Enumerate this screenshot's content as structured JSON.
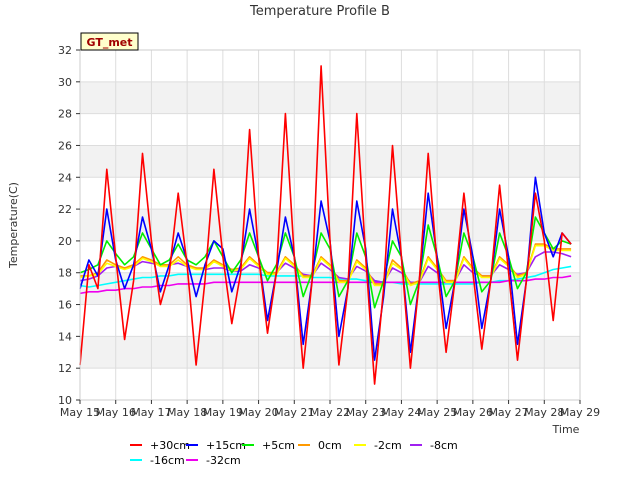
{
  "chart_data": {
    "type": "line",
    "title": "Temperature Profile B",
    "xlabel": "Time",
    "ylabel": "Temperature(C)",
    "annotation": "GT_met",
    "xlim": [
      "May 15",
      "May 29"
    ],
    "ylim": [
      10,
      32
    ],
    "yticks": [
      10,
      12,
      14,
      16,
      18,
      20,
      22,
      24,
      26,
      28,
      30,
      32
    ],
    "xticks": [
      "May 15",
      "May 16",
      "May 17",
      "May 18",
      "May 19",
      "May 20",
      "May 21",
      "May 22",
      "May 23",
      "May 24",
      "May 25",
      "May 26",
      "May 27",
      "May 28",
      "May 29"
    ],
    "grid": true,
    "legend_position": "bottom",
    "x": [
      "May 15 00:00",
      "May 15 06:00",
      "May 15 12:00",
      "May 15 18:00",
      "May 16 00:00",
      "May 16 06:00",
      "May 16 12:00",
      "May 16 18:00",
      "May 17 00:00",
      "May 17 06:00",
      "May 17 12:00",
      "May 17 18:00",
      "May 18 00:00",
      "May 18 06:00",
      "May 18 12:00",
      "May 18 18:00",
      "May 19 00:00",
      "May 19 06:00",
      "May 19 12:00",
      "May 19 18:00",
      "May 20 00:00",
      "May 20 06:00",
      "May 20 12:00",
      "May 20 18:00",
      "May 21 00:00",
      "May 21 06:00",
      "May 21 12:00",
      "May 21 18:00",
      "May 22 00:00",
      "May 22 06:00",
      "May 22 12:00",
      "May 22 18:00",
      "May 23 00:00",
      "May 23 06:00",
      "May 23 12:00",
      "May 23 18:00",
      "May 24 00:00",
      "May 24 06:00",
      "May 24 12:00",
      "May 24 18:00",
      "May 25 00:00",
      "May 25 06:00",
      "May 25 12:00",
      "May 25 18:00",
      "May 26 00:00",
      "May 26 06:00",
      "May 26 12:00",
      "May 26 18:00",
      "May 27 00:00",
      "May 27 06:00",
      "May 27 12:00",
      "May 27 18:00",
      "May 28 00:00",
      "May 28 06:00",
      "May 28 12:00",
      "May 28 18:00"
    ],
    "series": [
      {
        "name": "+30cm",
        "color": "#ff0000",
        "values": [
          12.2,
          18.5,
          17.0,
          24.5,
          19.0,
          13.8,
          17.5,
          25.5,
          20.0,
          16.0,
          18.0,
          23.0,
          18.5,
          12.2,
          17.5,
          24.5,
          19.0,
          14.8,
          18.0,
          27.0,
          19.0,
          14.2,
          18.0,
          28.0,
          19.0,
          12.0,
          17.5,
          31.0,
          20.0,
          12.2,
          17.0,
          28.0,
          19.0,
          11.0,
          17.0,
          26.0,
          19.0,
          12.0,
          17.5,
          25.5,
          18.5,
          13.0,
          17.5,
          23.0,
          18.0,
          13.2,
          17.5,
          23.5,
          18.0,
          12.5,
          17.5,
          23.0,
          20.0,
          15.0,
          20.5,
          19.8
        ]
      },
      {
        "name": "+15cm",
        "color": "#0000ff",
        "values": [
          17.0,
          18.8,
          17.8,
          22.0,
          18.8,
          17.0,
          18.5,
          21.5,
          19.5,
          16.8,
          18.5,
          20.5,
          18.8,
          16.5,
          18.5,
          20.0,
          19.5,
          16.8,
          18.5,
          22.0,
          19.0,
          15.0,
          18.0,
          21.5,
          19.0,
          13.5,
          17.5,
          22.5,
          20.0,
          14.0,
          17.0,
          22.5,
          19.5,
          12.5,
          16.5,
          22.0,
          19.0,
          13.0,
          17.5,
          23.0,
          19.0,
          14.5,
          17.5,
          22.0,
          19.0,
          14.5,
          17.5,
          22.0,
          19.0,
          13.5,
          17.5,
          24.0,
          20.5,
          19.0,
          20.5,
          19.8
        ]
      },
      {
        "name": "+5cm",
        "color": "#00ee00",
        "values": [
          18.0,
          18.2,
          18.5,
          20.0,
          19.2,
          18.5,
          19.0,
          20.5,
          19.5,
          18.5,
          18.8,
          19.8,
          18.8,
          18.5,
          19.0,
          20.0,
          19.0,
          18.0,
          18.8,
          20.5,
          19.0,
          17.5,
          18.5,
          20.5,
          19.0,
          16.5,
          18.0,
          20.5,
          19.5,
          16.5,
          17.5,
          20.5,
          19.0,
          15.8,
          17.5,
          20.0,
          19.0,
          16.0,
          17.5,
          21.0,
          19.0,
          16.5,
          17.5,
          20.5,
          19.0,
          16.8,
          17.5,
          20.5,
          19.0,
          17.0,
          18.0,
          21.5,
          20.5,
          19.5,
          20.0,
          19.8
        ]
      },
      {
        "name": "0cm",
        "color": "#ff9900",
        "values": [
          17.8,
          17.8,
          18.0,
          18.8,
          18.5,
          18.3,
          18.5,
          19.0,
          18.8,
          18.5,
          18.5,
          19.0,
          18.5,
          18.3,
          18.3,
          18.8,
          18.5,
          18.2,
          18.3,
          19.0,
          18.5,
          18.0,
          18.0,
          19.0,
          18.5,
          17.8,
          17.8,
          19.0,
          18.5,
          17.5,
          17.5,
          18.8,
          18.3,
          17.3,
          17.3,
          18.8,
          18.3,
          17.3,
          17.5,
          19.0,
          18.3,
          17.5,
          17.5,
          19.0,
          18.3,
          17.8,
          17.8,
          19.0,
          18.5,
          17.8,
          18.0,
          19.8,
          19.8,
          19.5,
          19.5,
          19.5
        ]
      },
      {
        "name": "-2cm",
        "color": "#ffff00",
        "values": [
          17.7,
          17.8,
          17.9,
          18.6,
          18.4,
          18.2,
          18.4,
          18.9,
          18.7,
          18.4,
          18.4,
          18.8,
          18.4,
          18.2,
          18.2,
          18.7,
          18.4,
          18.1,
          18.2,
          18.9,
          18.4,
          17.9,
          17.9,
          18.9,
          18.4,
          17.7,
          17.7,
          18.9,
          18.4,
          17.4,
          17.4,
          18.7,
          18.2,
          17.2,
          17.2,
          18.6,
          18.2,
          17.2,
          17.4,
          18.9,
          18.2,
          17.4,
          17.4,
          18.9,
          18.2,
          17.7,
          17.7,
          18.9,
          18.4,
          17.7,
          17.9,
          19.7,
          19.7,
          19.4,
          19.4,
          19.4
        ]
      },
      {
        "name": "-8cm",
        "color": "#a020f0",
        "values": [
          17.5,
          17.6,
          17.8,
          18.3,
          18.4,
          18.3,
          18.4,
          18.7,
          18.6,
          18.5,
          18.5,
          18.6,
          18.4,
          18.3,
          18.2,
          18.3,
          18.3,
          18.1,
          18.1,
          18.5,
          18.3,
          18.0,
          18.0,
          18.6,
          18.3,
          17.9,
          17.8,
          18.6,
          18.2,
          17.7,
          17.6,
          18.4,
          18.1,
          17.5,
          17.4,
          18.3,
          18.0,
          17.4,
          17.4,
          18.4,
          18.0,
          17.5,
          17.5,
          18.5,
          18.0,
          17.8,
          17.8,
          18.5,
          18.2,
          17.9,
          18.0,
          19.0,
          19.3,
          19.3,
          19.2,
          19.0
        ]
      },
      {
        "name": "-16cm",
        "color": "#00ffff",
        "values": [
          17.2,
          17.1,
          17.2,
          17.3,
          17.4,
          17.5,
          17.6,
          17.7,
          17.7,
          17.8,
          17.8,
          17.9,
          17.9,
          17.9,
          17.9,
          17.9,
          17.9,
          17.9,
          17.9,
          17.9,
          17.9,
          17.8,
          17.8,
          17.8,
          17.8,
          17.8,
          17.7,
          17.7,
          17.7,
          17.6,
          17.6,
          17.6,
          17.5,
          17.5,
          17.4,
          17.4,
          17.3,
          17.3,
          17.3,
          17.3,
          17.3,
          17.3,
          17.3,
          17.3,
          17.3,
          17.4,
          17.4,
          17.5,
          17.5,
          17.6,
          17.7,
          17.8,
          18.0,
          18.2,
          18.3,
          18.4
        ]
      },
      {
        "name": "-32cm",
        "color": "#ee00ee",
        "values": [
          16.7,
          16.8,
          16.8,
          16.9,
          16.9,
          17.0,
          17.0,
          17.1,
          17.1,
          17.2,
          17.2,
          17.3,
          17.3,
          17.3,
          17.3,
          17.4,
          17.4,
          17.4,
          17.4,
          17.4,
          17.4,
          17.4,
          17.4,
          17.4,
          17.4,
          17.4,
          17.4,
          17.4,
          17.4,
          17.4,
          17.4,
          17.4,
          17.4,
          17.4,
          17.4,
          17.4,
          17.4,
          17.4,
          17.4,
          17.4,
          17.4,
          17.4,
          17.4,
          17.4,
          17.4,
          17.4,
          17.4,
          17.4,
          17.5,
          17.5,
          17.5,
          17.6,
          17.6,
          17.7,
          17.7,
          17.8
        ]
      }
    ]
  }
}
